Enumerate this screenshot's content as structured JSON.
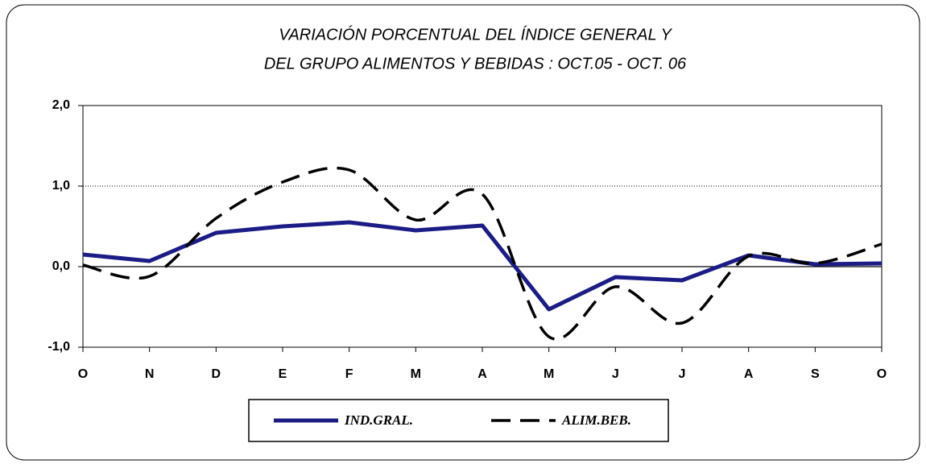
{
  "chart_data": {
    "type": "line",
    "title": [
      "VARIACIÓN PORCENTUAL DEL ÍNDICE GENERAL Y",
      "DEL GRUPO ALIMENTOS Y BEBIDAS : OCT.05 - OCT. 06"
    ],
    "categories": [
      "O",
      "N",
      "D",
      "E",
      "F",
      "M",
      "A",
      "M",
      "J",
      "J",
      "A",
      "S",
      "O"
    ],
    "series": [
      {
        "name": "IND.GRAL.",
        "color": "#1c1c86",
        "dash": false,
        "smooth": false,
        "values": [
          0.15,
          0.07,
          0.42,
          0.5,
          0.55,
          0.45,
          0.51,
          -0.53,
          -0.13,
          -0.17,
          0.14,
          0.03,
          0.04
        ]
      },
      {
        "name": "ALIM.BEB.",
        "color": "#000000",
        "dash": true,
        "smooth": true,
        "values": [
          0.02,
          -0.12,
          0.6,
          1.05,
          1.2,
          0.58,
          0.9,
          -0.87,
          -0.25,
          -0.7,
          0.13,
          0.04,
          0.28
        ]
      }
    ],
    "ylim": [
      -1,
      2
    ],
    "yticks": [
      {
        "value": -1,
        "label": "-1,0"
      },
      {
        "value": 0,
        "label": "0,0"
      },
      {
        "value": 1,
        "label": "1,0"
      },
      {
        "value": 2,
        "label": "2,0"
      }
    ],
    "grid": true,
    "legend": "bottom"
  }
}
